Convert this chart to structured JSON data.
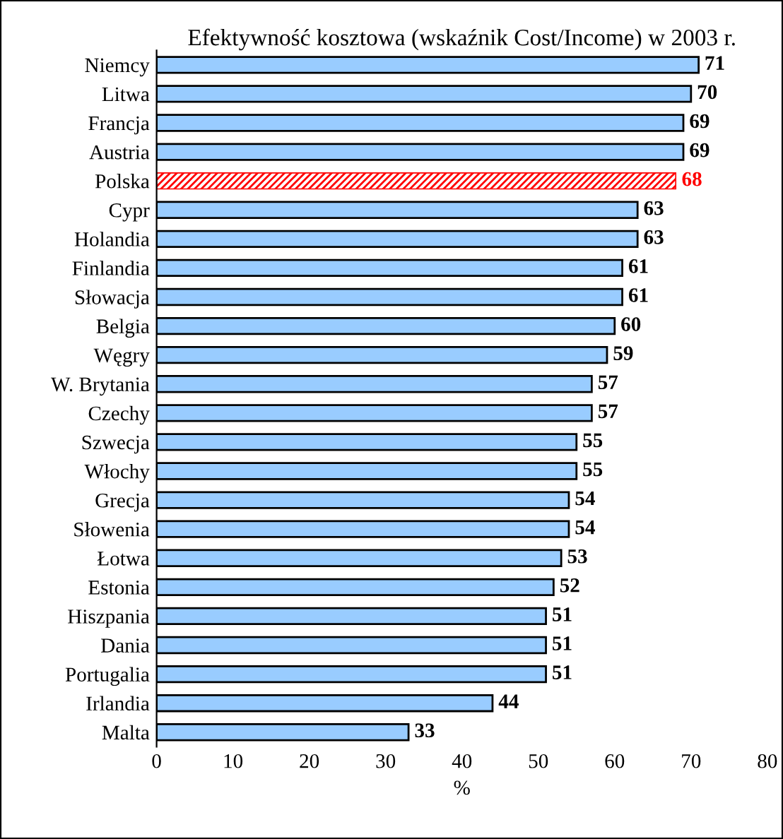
{
  "chart_data": {
    "type": "bar",
    "orientation": "horizontal",
    "title": "Efektywność kosztowa (wskaźnik Cost/Income) w 2003 r.",
    "xlabel": "%",
    "categories": [
      "Niemcy",
      "Litwa",
      "Francja",
      "Austria",
      "Polska",
      "Cypr",
      "Holandia",
      "Finlandia",
      "Słowacja",
      "Belgia",
      "Węgry",
      "W. Brytania",
      "Czechy",
      "Szwecja",
      "Włochy",
      "Grecja",
      "Słowenia",
      "Łotwa",
      "Estonia",
      "Hiszpania",
      "Dania",
      "Portugalia",
      "Irlandia",
      "Malta"
    ],
    "values": [
      71,
      70,
      69,
      69,
      68,
      63,
      63,
      61,
      61,
      60,
      59,
      57,
      57,
      55,
      55,
      54,
      54,
      53,
      52,
      51,
      51,
      51,
      44,
      33
    ],
    "colors": [
      "#99ccff",
      "#99ccff",
      "#99ccff",
      "#99ccff",
      "#ff0000",
      "#99ccff",
      "#99ccff",
      "#99ccff",
      "#99ccff",
      "#99ccff",
      "#99ccff",
      "#99ccff",
      "#99ccff",
      "#99ccff",
      "#99ccff",
      "#99ccff",
      "#99ccff",
      "#99ccff",
      "#99ccff",
      "#99ccff",
      "#99ccff",
      "#99ccff",
      "#99ccff",
      "#99ccff"
    ],
    "xlim": [
      0,
      80
    ],
    "xticks": [
      0,
      10,
      20,
      30,
      40,
      50,
      60,
      70,
      80
    ],
    "data_labels": true,
    "grid": false,
    "legend": false
  }
}
